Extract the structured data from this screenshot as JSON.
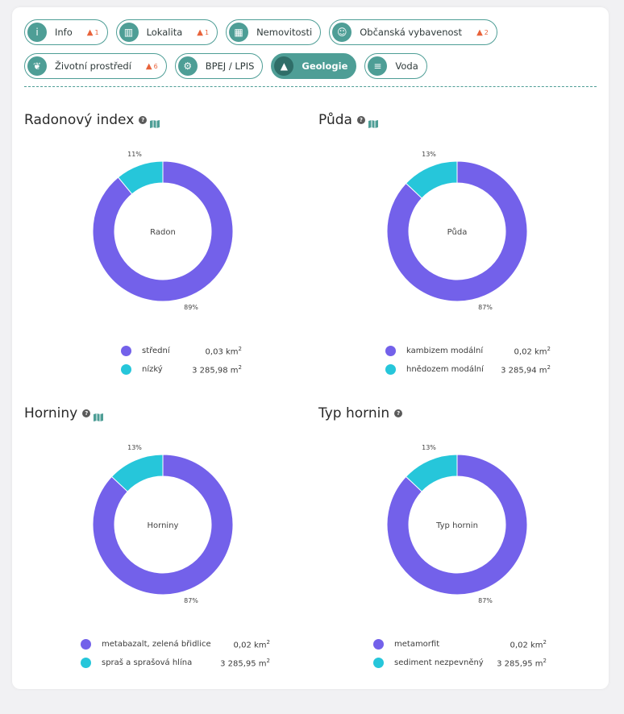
{
  "tabs": [
    [
      {
        "label": "Info",
        "icon": "info-icon",
        "warning": "1",
        "active": false
      },
      {
        "label": "Lokalita",
        "icon": "map-icon",
        "warning": "1",
        "active": false
      },
      {
        "label": "Nemovitosti",
        "icon": "building-icon",
        "warning": null,
        "active": false
      },
      {
        "label": "Občanská vybavenost",
        "icon": "person-check-icon",
        "warning": "2",
        "active": false
      }
    ],
    [
      {
        "label": "Životní prostředí",
        "icon": "leaf-icon",
        "warning": "6",
        "active": false
      },
      {
        "label": "BPEJ / LPIS",
        "icon": "tractor-icon",
        "warning": null,
        "active": false
      },
      {
        "label": "Geologie",
        "icon": "mountain-icon",
        "warning": null,
        "active": true
      },
      {
        "label": "Voda",
        "icon": "water-icon",
        "warning": null,
        "active": false
      }
    ]
  ],
  "colors": {
    "accent": "#4e9e96",
    "series_primary": "#7361ea",
    "series_secondary": "#26c6da",
    "warning": "#e8623a"
  },
  "panels": [
    {
      "title": "Radonový index",
      "has_map": true,
      "center_label": "Radon",
      "legend": [
        {
          "name": "střední",
          "value": "0,03 km",
          "unit_sup": "2"
        },
        {
          "name": "nízký",
          "value": "3 285,98 m",
          "unit_sup": "2"
        }
      ]
    },
    {
      "title": "Půda",
      "has_map": true,
      "center_label": "Půda",
      "legend": [
        {
          "name": "kambizem modální",
          "value": "0,02 km",
          "unit_sup": "2"
        },
        {
          "name": "hnědozem modální",
          "value": "3 285,94 m",
          "unit_sup": "2"
        }
      ]
    },
    {
      "title": "Horniny",
      "has_map": true,
      "center_label": "Horniny",
      "legend": [
        {
          "name": "metabazalt, zelená břidlice",
          "value": "0,02 km",
          "unit_sup": "2"
        },
        {
          "name": "spraš a sprašová hlína",
          "value": "3 285,95 m",
          "unit_sup": "2"
        }
      ]
    },
    {
      "title": "Typ hornin",
      "has_map": false,
      "center_label": "Typ hornin",
      "legend": [
        {
          "name": "metamorfit",
          "value": "0,02 km",
          "unit_sup": "2"
        },
        {
          "name": "sediment nezpevněný",
          "value": "3 285,95 m",
          "unit_sup": "2"
        }
      ]
    }
  ],
  "chart_data": [
    {
      "type": "pie",
      "title": "Radonový index",
      "center": "Radon",
      "categories": [
        "střední",
        "nízký"
      ],
      "values": [
        89,
        11
      ],
      "labels": [
        "89%",
        "11%"
      ]
    },
    {
      "type": "pie",
      "title": "Půda",
      "center": "Půda",
      "categories": [
        "kambizem modální",
        "hnědozem modální"
      ],
      "values": [
        87,
        13
      ],
      "labels": [
        "87%",
        "13%"
      ]
    },
    {
      "type": "pie",
      "title": "Horniny",
      "center": "Horniny",
      "categories": [
        "metabazalt, zelená břidlice",
        "spraš a sprašová hlína"
      ],
      "values": [
        87,
        13
      ],
      "labels": [
        "87%",
        "13%"
      ]
    },
    {
      "type": "pie",
      "title": "Typ hornin",
      "center": "Typ hornin",
      "categories": [
        "metamorfit",
        "sediment nezpevněný"
      ],
      "values": [
        87,
        13
      ],
      "labels": [
        "87%",
        "13%"
      ]
    }
  ]
}
